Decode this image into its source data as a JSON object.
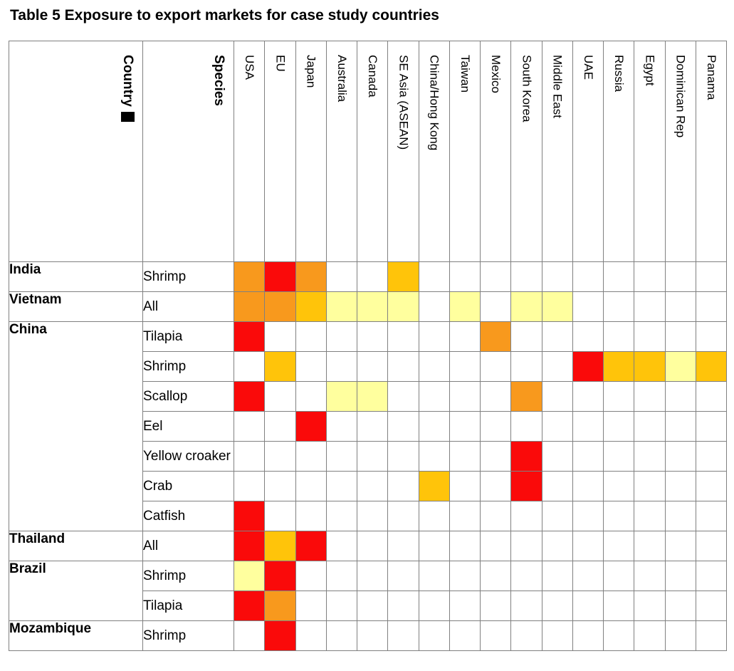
{
  "chart_data": {
    "type": "heatmap",
    "title": "Table 5 Exposure to export markets for case study countries",
    "corner_headers": {
      "country": "Country",
      "species": "Species",
      "country_cursor_bar": true
    },
    "columns": [
      "USA",
      "EU",
      "Japan",
      "Australia",
      "Canada",
      "SE Asia (ASEAN)",
      "China/Hong Kong",
      "Taiwan",
      "Mexico",
      "South Korea",
      "Middle East",
      "UAE",
      "Russia",
      "Egypt",
      "Dominican Rep",
      "Panama"
    ],
    "exposure_levels": {
      "0": "none",
      "1": "low",
      "2": "medium",
      "3": "high",
      "4": "very high"
    },
    "palette": {
      "0": "#FFFFFF",
      "1": "#FFFF9E",
      "2": "#FFC40A",
      "3": "#F8991D",
      "4": "#FA0A0A"
    },
    "grid_color": "#808080",
    "groups": [
      {
        "country": "India",
        "rows": [
          {
            "species": "Shrimp",
            "values": [
              3,
              4,
              3,
              0,
              0,
              2,
              0,
              0,
              0,
              0,
              0,
              0,
              0,
              0,
              0,
              0
            ]
          }
        ]
      },
      {
        "country": "Vietnam",
        "rows": [
          {
            "species": "All",
            "values": [
              3,
              3,
              2,
              1,
              1,
              1,
              0,
              1,
              0,
              1,
              1,
              0,
              0,
              0,
              0,
              0
            ]
          }
        ]
      },
      {
        "country": "China",
        "rows": [
          {
            "species": "Tilapia",
            "values": [
              4,
              0,
              0,
              0,
              0,
              0,
              0,
              0,
              3,
              0,
              0,
              0,
              0,
              0,
              0,
              0
            ]
          },
          {
            "species": "Shrimp",
            "values": [
              0,
              2,
              0,
              0,
              0,
              0,
              0,
              0,
              0,
              0,
              0,
              4,
              2,
              2,
              1,
              2
            ]
          },
          {
            "species": "Scallop",
            "values": [
              4,
              0,
              0,
              1,
              1,
              0,
              0,
              0,
              0,
              3,
              0,
              0,
              0,
              0,
              0,
              0
            ]
          },
          {
            "species": "Eel",
            "values": [
              0,
              0,
              4,
              0,
              0,
              0,
              0,
              0,
              0,
              0,
              0,
              0,
              0,
              0,
              0,
              0
            ]
          },
          {
            "species": "Yellow croaker",
            "values": [
              0,
              0,
              0,
              0,
              0,
              0,
              0,
              0,
              0,
              4,
              0,
              0,
              0,
              0,
              0,
              0
            ]
          },
          {
            "species": "Crab",
            "values": [
              0,
              0,
              0,
              0,
              0,
              0,
              2,
              0,
              0,
              4,
              0,
              0,
              0,
              0,
              0,
              0
            ]
          },
          {
            "species": "Catfish",
            "values": [
              4,
              0,
              0,
              0,
              0,
              0,
              0,
              0,
              0,
              0,
              0,
              0,
              0,
              0,
              0,
              0
            ]
          }
        ]
      },
      {
        "country": "Thailand",
        "rows": [
          {
            "species": "All",
            "values": [
              4,
              2,
              4,
              0,
              0,
              0,
              0,
              0,
              0,
              0,
              0,
              0,
              0,
              0,
              0,
              0
            ]
          }
        ]
      },
      {
        "country": "Brazil",
        "rows": [
          {
            "species": "Shrimp",
            "values": [
              1,
              4,
              0,
              0,
              0,
              0,
              0,
              0,
              0,
              0,
              0,
              0,
              0,
              0,
              0,
              0
            ]
          },
          {
            "species": "Tilapia",
            "values": [
              4,
              3,
              0,
              0,
              0,
              0,
              0,
              0,
              0,
              0,
              0,
              0,
              0,
              0,
              0,
              0
            ]
          }
        ]
      },
      {
        "country": "Mozambique",
        "rows": [
          {
            "species": "Shrimp",
            "values": [
              0,
              4,
              0,
              0,
              0,
              0,
              0,
              0,
              0,
              0,
              0,
              0,
              0,
              0,
              0,
              0
            ]
          }
        ]
      }
    ]
  }
}
